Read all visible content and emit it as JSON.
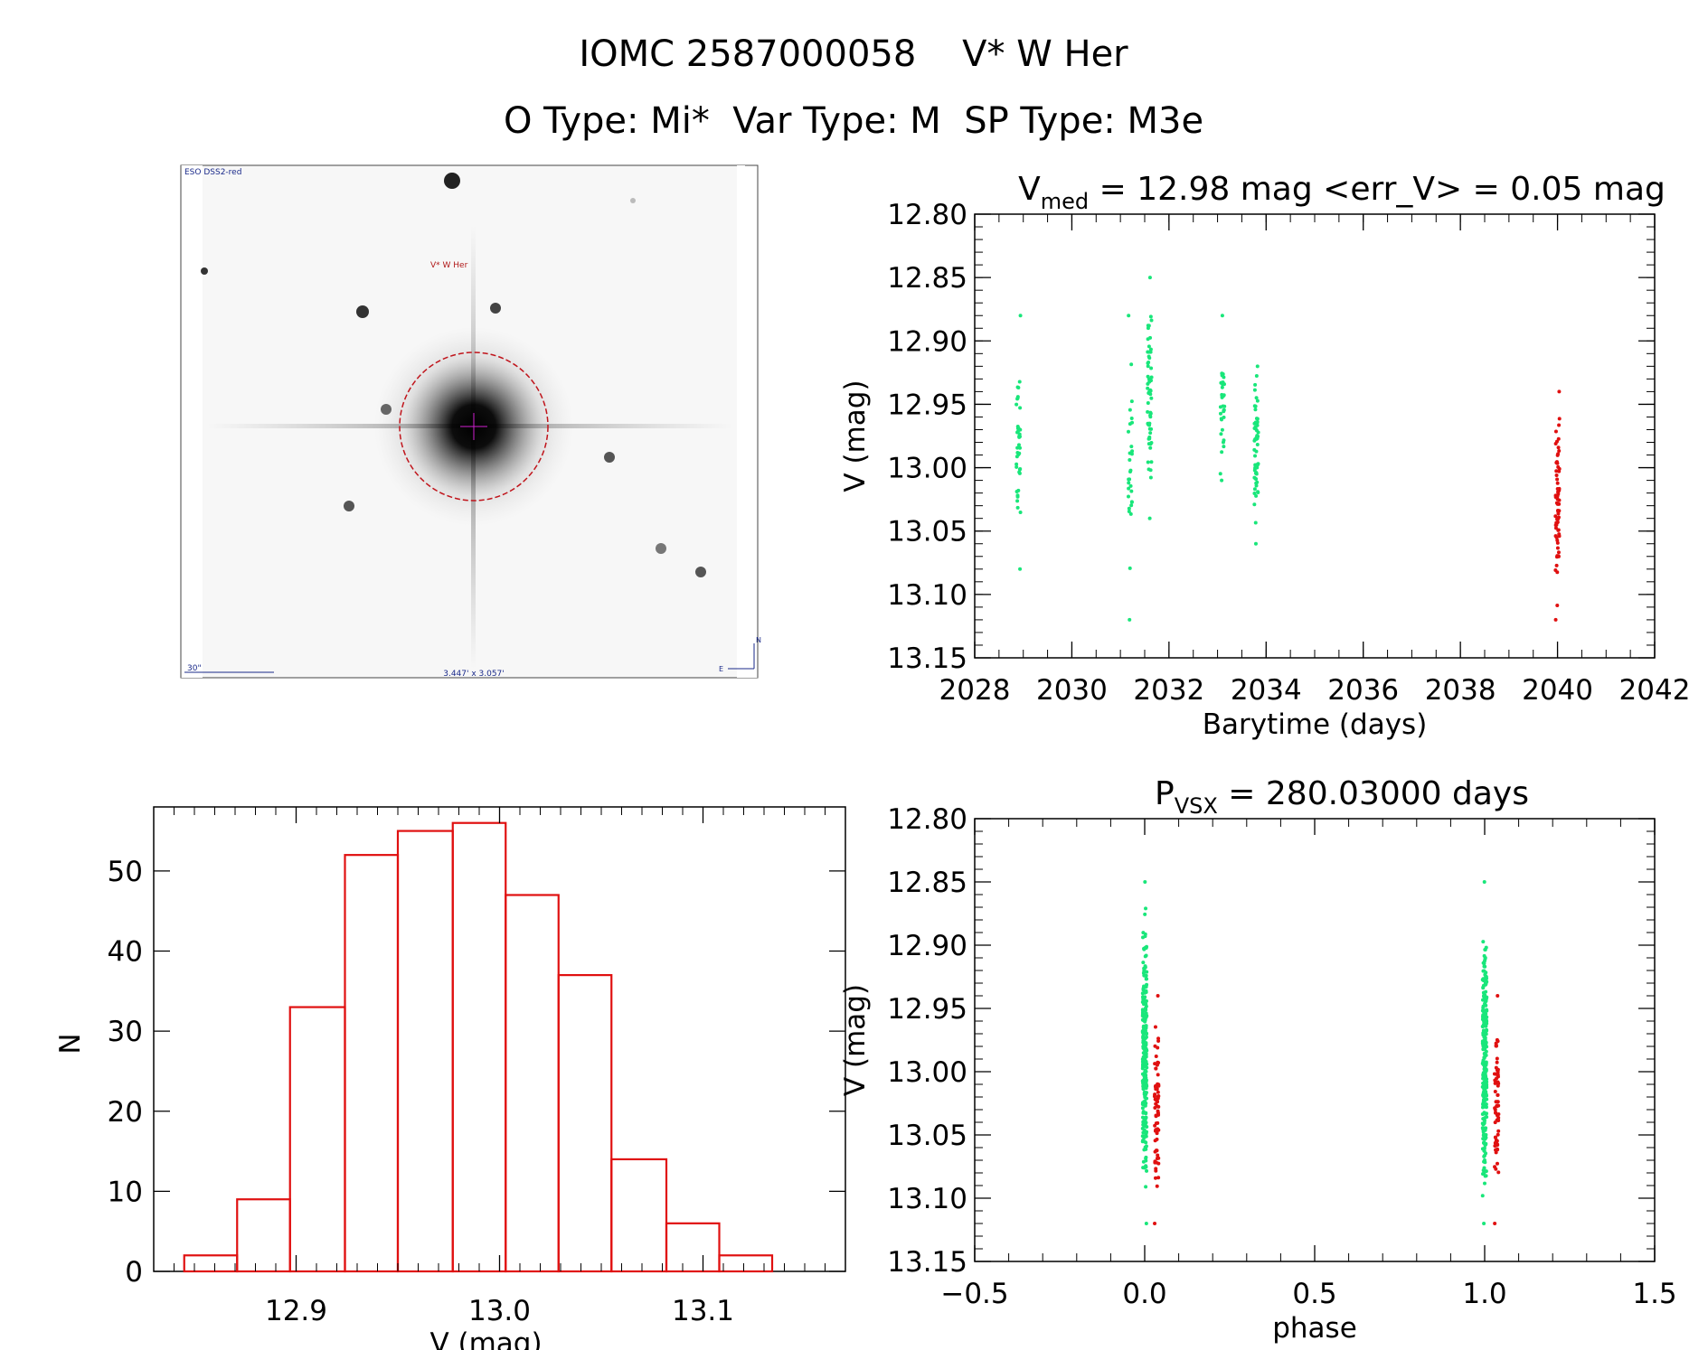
{
  "header": {
    "title_line1": "IOMC 2587000058    V* W Her",
    "title_line2": "O Type: Mi*  Var Type: M  SP Type: M3e"
  },
  "finder": {
    "survey_label": "ESO DSS2-red",
    "object_label": "V* W Her",
    "scale_label": "30\"",
    "size_label": "3.447' x 3.057'",
    "north_label": "N",
    "east_label": "E"
  },
  "colors": {
    "green": "#19e67a",
    "red": "#e01010",
    "hist": "#e01010",
    "circle": "#c0141b"
  },
  "chart_data": [
    {
      "type": "scatter",
      "name": "light_curve",
      "title_main": "V",
      "title_sub": "med",
      "title_rest": " = 12.98 mag <err_V> = 0.05 mag",
      "xlabel": "Barytime (days)",
      "ylabel": "V (mag)",
      "xlim": [
        2028,
        2042
      ],
      "ylim": [
        13.15,
        12.8
      ],
      "xticks": [
        "2028",
        "2030",
        "2032",
        "2034",
        "2036",
        "2038",
        "2040",
        "2042"
      ],
      "yticks": [
        "12.80",
        "12.85",
        "12.90",
        "12.95",
        "13.00",
        "13.05",
        "13.10",
        "13.15"
      ],
      "series": [
        {
          "name": "green",
          "clusters": [
            {
              "x": 2028.9,
              "ymin": 12.88,
              "ymax": 13.08,
              "n": 40
            },
            {
              "x": 2031.2,
              "ymin": 12.88,
              "ymax": 13.12,
              "n": 30
            },
            {
              "x": 2031.6,
              "ymin": 12.85,
              "ymax": 13.04,
              "n": 60
            },
            {
              "x": 2033.1,
              "ymin": 12.88,
              "ymax": 13.01,
              "n": 35
            },
            {
              "x": 2033.8,
              "ymin": 12.92,
              "ymax": 13.06,
              "n": 60
            }
          ]
        },
        {
          "name": "red",
          "clusters": [
            {
              "x": 2040.0,
              "ymin": 12.94,
              "ymax": 13.12,
              "n": 70
            }
          ]
        }
      ]
    },
    {
      "type": "bar",
      "name": "histogram",
      "xlabel": "V (mag)",
      "ylabel": "N",
      "xlim": [
        12.83,
        13.17
      ],
      "ylim": [
        0,
        58
      ],
      "xticks": [
        "12.9",
        "13.0",
        "13.1"
      ],
      "yticks": [
        "0",
        "10",
        "20",
        "30",
        "40",
        "50"
      ],
      "bin_edges": [
        12.845,
        12.871,
        12.897,
        12.924,
        12.95,
        12.977,
        13.003,
        13.029,
        13.055,
        13.082,
        13.108,
        13.134
      ],
      "values": [
        2,
        9,
        33,
        52,
        55,
        56,
        47,
        37,
        14,
        6,
        2
      ]
    },
    {
      "type": "scatter",
      "name": "phased_curve",
      "title_main": "P",
      "title_sub": "VSX",
      "title_rest": " = 280.03000 days",
      "xlabel": "phase",
      "ylabel": "V (mag)",
      "xlim": [
        -0.5,
        1.5
      ],
      "ylim": [
        13.15,
        12.8
      ],
      "xticks": [
        "−0.5",
        "0.0",
        "0.5",
        "1.0",
        "1.5"
      ],
      "yticks": [
        "12.80",
        "12.85",
        "12.90",
        "12.95",
        "13.00",
        "13.05",
        "13.10",
        "13.15"
      ],
      "series": [
        {
          "name": "green",
          "clusters": [
            {
              "x": 0.0,
              "ymin": 12.85,
              "ymax": 13.12,
              "n": 260
            },
            {
              "x": 1.0,
              "ymin": 12.85,
              "ymax": 13.12,
              "n": 260
            }
          ]
        },
        {
          "name": "red",
          "clusters": [
            {
              "x": 0.035,
              "ymin": 12.94,
              "ymax": 13.12,
              "n": 70
            },
            {
              "x": 1.035,
              "ymin": 12.94,
              "ymax": 13.12,
              "n": 70
            }
          ]
        }
      ]
    }
  ]
}
